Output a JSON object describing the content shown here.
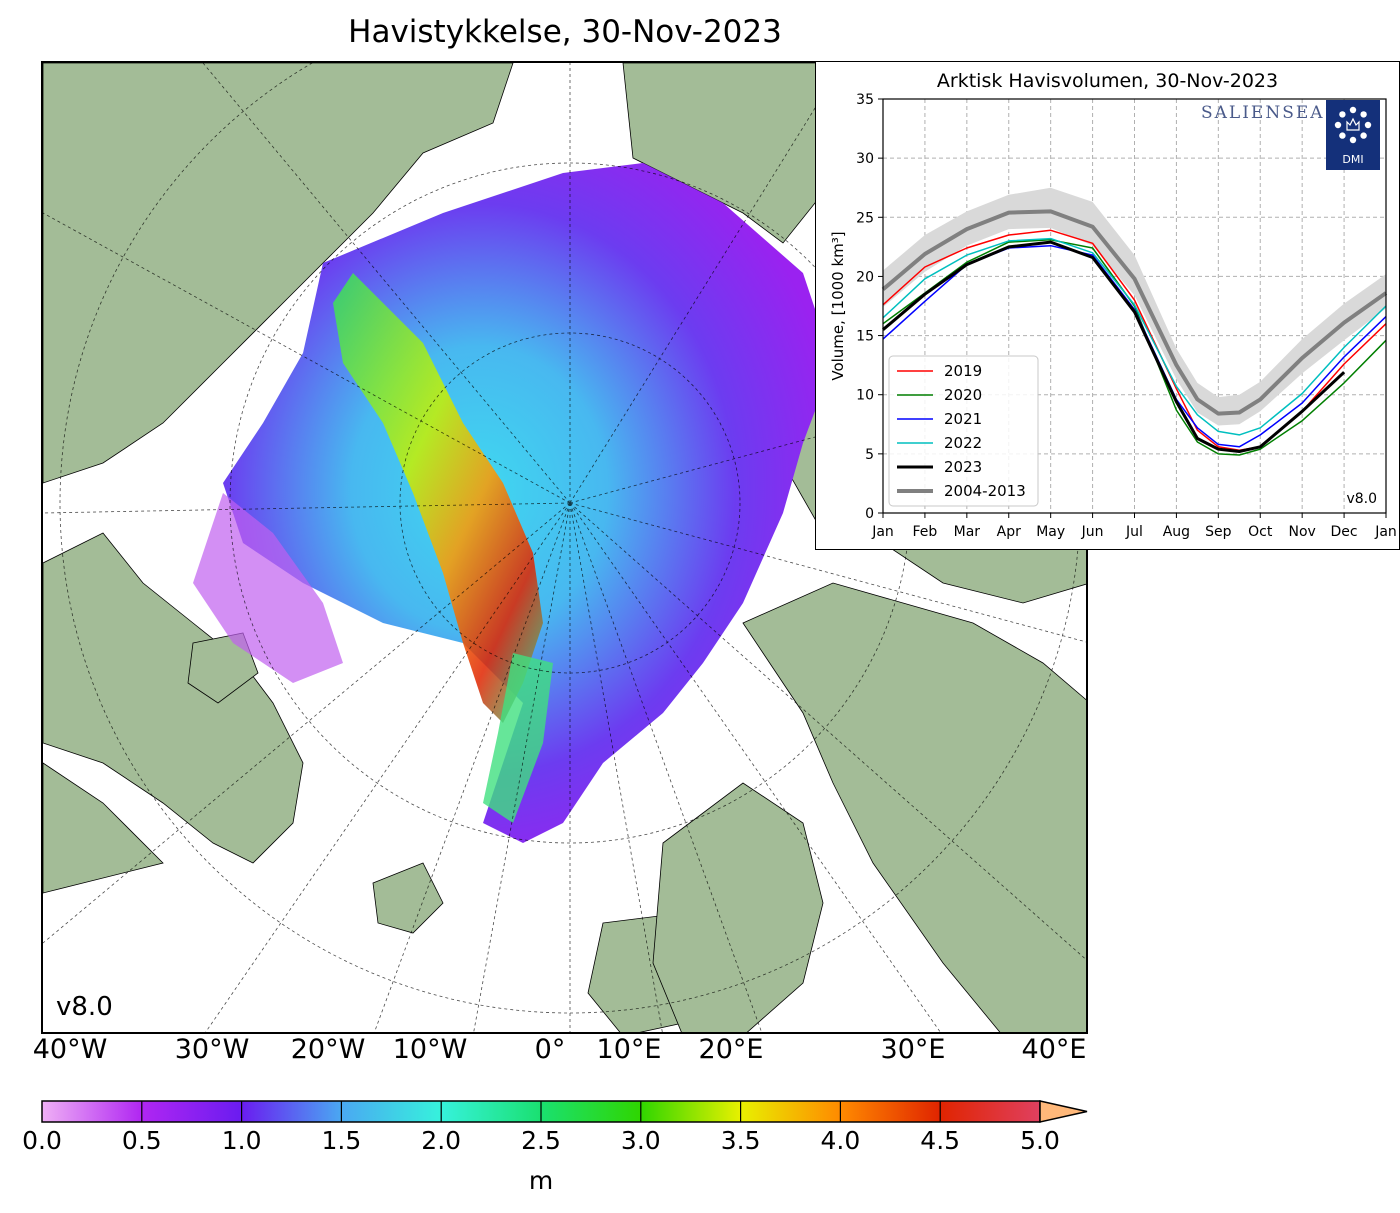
{
  "main": {
    "title": "Havistykkelse, 30-Nov-2023",
    "version": "v8.0",
    "lon_labels": [
      "40°W",
      "30°W",
      "20°W",
      "10°W",
      "0°",
      "10°E",
      "20°E",
      "30°E",
      "40°E"
    ],
    "colorbar": {
      "ticks": [
        "0.0",
        "0.5",
        "1.0",
        "1.5",
        "2.0",
        "2.5",
        "3.0",
        "3.5",
        "4.0",
        "4.5",
        "5.0"
      ],
      "unit": "m",
      "colors": [
        "#efb0f5",
        "#b026f2",
        "#6a1cf0",
        "#4aa8f2",
        "#36f2dc",
        "#1ae070",
        "#2fd600",
        "#e8f000",
        "#ff8a00",
        "#e02400",
        "#e04060",
        "#ffb87a"
      ]
    },
    "colors": {
      "land": "#a3bc97",
      "ocean": "#ffffff",
      "rivers": "#8ab8e8"
    }
  },
  "inset": {
    "title": "Arktisk Havisvolumen, 30-Nov-2023",
    "logo_text": "SALIENSEAS",
    "dmi_label": "DMI",
    "version": "v8.0",
    "chart_data": {
      "type": "line",
      "ylabel": "Volume, [1000 km³]",
      "ylim": [
        0,
        35
      ],
      "yticks": [
        0,
        5,
        10,
        15,
        20,
        25,
        30,
        35
      ],
      "months": [
        "Jan",
        "Feb",
        "Mar",
        "Apr",
        "May",
        "Jun",
        "Jul",
        "Aug",
        "Sep",
        "Oct",
        "Nov",
        "Dec",
        "Jan"
      ],
      "month_positions": [
        0,
        1,
        2,
        3,
        4,
        5,
        6,
        7,
        8,
        9,
        10,
        11,
        12
      ],
      "series": [
        {
          "name": "2019",
          "color": "#ff0000",
          "width": 1.5,
          "x": [
            0,
            1,
            2,
            3,
            4,
            5,
            6,
            7,
            7.5,
            8,
            8.5,
            9,
            10,
            11,
            12
          ],
          "y": [
            17.6,
            20.8,
            22.4,
            23.5,
            23.9,
            22.8,
            18.0,
            10.5,
            7.0,
            5.6,
            5.3,
            5.6,
            8.6,
            12.6,
            16.0
          ]
        },
        {
          "name": "2020",
          "color": "#007f00",
          "width": 1.5,
          "x": [
            0,
            1,
            2,
            3,
            4,
            5,
            6,
            7,
            7.5,
            8,
            8.5,
            9,
            10,
            11,
            12
          ],
          "y": [
            16.0,
            18.6,
            21.2,
            22.9,
            23.1,
            22.4,
            17.5,
            8.7,
            6.0,
            5.0,
            4.9,
            5.4,
            7.8,
            11.0,
            14.6
          ]
        },
        {
          "name": "2021",
          "color": "#0000ff",
          "width": 1.5,
          "x": [
            0,
            1,
            2,
            3,
            4,
            5,
            6,
            7,
            7.5,
            8,
            8.5,
            9,
            10,
            11,
            12
          ],
          "y": [
            14.7,
            17.9,
            21.0,
            22.4,
            22.6,
            21.8,
            17.2,
            9.6,
            7.2,
            5.8,
            5.6,
            6.6,
            9.3,
            13.2,
            16.6
          ]
        },
        {
          "name": "2022",
          "color": "#00bfbf",
          "width": 1.5,
          "x": [
            0,
            1,
            2,
            3,
            4,
            5,
            6,
            7,
            7.5,
            8,
            8.5,
            9,
            10,
            11,
            12
          ],
          "y": [
            16.5,
            19.8,
            21.8,
            23.0,
            23.2,
            22.0,
            17.6,
            10.7,
            8.3,
            6.9,
            6.6,
            7.2,
            10.1,
            14.0,
            17.5
          ]
        },
        {
          "name": "2023",
          "color": "#000000",
          "width": 3,
          "x": [
            0,
            1,
            2,
            3,
            4,
            5,
            6,
            7,
            7.5,
            8,
            8.5,
            9,
            10,
            11
          ],
          "y": [
            15.5,
            18.5,
            21.0,
            22.5,
            22.9,
            21.6,
            17.0,
            9.4,
            6.3,
            5.4,
            5.2,
            5.6,
            8.6,
            11.9
          ]
        },
        {
          "name": "2004-2013",
          "color": "#808080",
          "width": 4,
          "x": [
            0,
            1,
            2,
            3,
            4,
            5,
            6,
            7,
            7.5,
            8,
            8.5,
            9,
            10,
            11,
            12
          ],
          "y": [
            18.9,
            21.9,
            24.0,
            25.4,
            25.5,
            24.2,
            19.8,
            12.5,
            9.6,
            8.4,
            8.5,
            9.6,
            13.1,
            16.1,
            18.6
          ]
        }
      ],
      "band": {
        "color": "#d9d9d9",
        "x": [
          0,
          1,
          2,
          3,
          4,
          5,
          6,
          7,
          7.5,
          8,
          8.5,
          9,
          10,
          11,
          12
        ],
        "low": [
          17.4,
          20.4,
          22.6,
          24.0,
          24.1,
          22.6,
          18.4,
          11.3,
          8.5,
          7.4,
          7.5,
          8.6,
          11.8,
          14.6,
          17.3
        ],
        "high": [
          20.5,
          23.5,
          25.5,
          26.9,
          27.5,
          26.3,
          21.8,
          13.9,
          11.0,
          9.8,
          10.0,
          11.1,
          14.7,
          17.7,
          20.2
        ]
      },
      "grid": true,
      "legend_position": "bottom-left"
    }
  }
}
